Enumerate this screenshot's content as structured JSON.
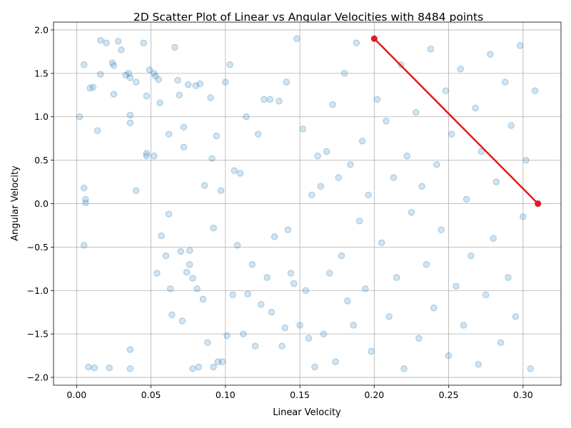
{
  "chart_data": {
    "type": "scatter",
    "title": "2D Scatter Plot of Linear vs Angular Velocities with 8484 points",
    "xlabel": "Linear Velocity",
    "ylabel": "Angular Velocity",
    "xlim": [
      -0.0155,
      0.3255
    ],
    "ylim": [
      -2.09,
      2.09
    ],
    "xticks": [
      0.0,
      0.05,
      0.1,
      0.15,
      0.2,
      0.25,
      0.3
    ],
    "xtick_labels": [
      "0.00",
      "0.05",
      "0.10",
      "0.15",
      "0.20",
      "0.25",
      "0.30"
    ],
    "yticks": [
      -2.0,
      -1.5,
      -1.0,
      -0.5,
      0.0,
      0.5,
      1.0,
      1.5,
      2.0
    ],
    "ytick_labels": [
      "−2.0",
      "−1.5",
      "−1.0",
      "−0.5",
      "0.0",
      "0.5",
      "1.0",
      "1.5",
      "2.0"
    ],
    "grid": true,
    "n_points": 8484,
    "series": [
      {
        "kind": "scatter",
        "color": "#1f77b4",
        "alpha": 0.2,
        "points": [
          [
            0.002,
            1.0
          ],
          [
            0.005,
            1.6
          ],
          [
            0.005,
            0.18
          ],
          [
            0.006,
            0.05
          ],
          [
            0.006,
            0.01
          ],
          [
            0.005,
            -0.48
          ],
          [
            0.008,
            -1.88
          ],
          [
            0.012,
            -1.89
          ],
          [
            0.009,
            1.33
          ],
          [
            0.011,
            1.34
          ],
          [
            0.014,
            0.84
          ],
          [
            0.016,
            1.49
          ],
          [
            0.016,
            1.88
          ],
          [
            0.02,
            1.85
          ],
          [
            0.022,
            -1.89
          ],
          [
            0.024,
            1.62
          ],
          [
            0.025,
            1.59
          ],
          [
            0.025,
            1.26
          ],
          [
            0.028,
            1.87
          ],
          [
            0.03,
            1.77
          ],
          [
            0.033,
            1.48
          ],
          [
            0.035,
            1.5
          ],
          [
            0.036,
            1.45
          ],
          [
            0.036,
            1.02
          ],
          [
            0.036,
            0.93
          ],
          [
            0.036,
            -1.68
          ],
          [
            0.036,
            -1.9
          ],
          [
            0.04,
            1.4
          ],
          [
            0.04,
            0.15
          ],
          [
            0.045,
            1.85
          ],
          [
            0.047,
            1.24
          ],
          [
            0.047,
            0.58
          ],
          [
            0.047,
            0.55
          ],
          [
            0.049,
            1.54
          ],
          [
            0.052,
            1.5
          ],
          [
            0.052,
            0.55
          ],
          [
            0.053,
            1.47
          ],
          [
            0.054,
            -0.8
          ],
          [
            0.055,
            1.43
          ],
          [
            0.056,
            1.16
          ],
          [
            0.057,
            -0.37
          ],
          [
            0.06,
            -0.6
          ],
          [
            0.062,
            0.8
          ],
          [
            0.062,
            -0.12
          ],
          [
            0.063,
            -0.98
          ],
          [
            0.064,
            -1.28
          ],
          [
            0.066,
            1.8
          ],
          [
            0.068,
            1.42
          ],
          [
            0.069,
            1.25
          ],
          [
            0.07,
            -0.55
          ],
          [
            0.071,
            -1.35
          ],
          [
            0.072,
            0.88
          ],
          [
            0.072,
            0.65
          ],
          [
            0.074,
            -0.79
          ],
          [
            0.075,
            1.37
          ],
          [
            0.076,
            -0.54
          ],
          [
            0.076,
            -0.7
          ],
          [
            0.078,
            -0.86
          ],
          [
            0.078,
            -1.9
          ],
          [
            0.08,
            1.36
          ],
          [
            0.081,
            -0.98
          ],
          [
            0.082,
            -1.88
          ],
          [
            0.083,
            1.38
          ],
          [
            0.085,
            -1.1
          ],
          [
            0.086,
            0.21
          ],
          [
            0.088,
            -1.6
          ],
          [
            0.09,
            1.22
          ],
          [
            0.091,
            0.52
          ],
          [
            0.092,
            -0.28
          ],
          [
            0.092,
            -1.88
          ],
          [
            0.094,
            0.78
          ],
          [
            0.095,
            -1.82
          ],
          [
            0.097,
            0.15
          ],
          [
            0.098,
            -1.82
          ],
          [
            0.1,
            1.4
          ],
          [
            0.101,
            -1.52
          ],
          [
            0.103,
            1.6
          ],
          [
            0.105,
            -1.05
          ],
          [
            0.106,
            0.38
          ],
          [
            0.108,
            -0.48
          ],
          [
            0.11,
            0.35
          ],
          [
            0.112,
            -1.5
          ],
          [
            0.114,
            1.0
          ],
          [
            0.115,
            -1.04
          ],
          [
            0.118,
            -0.7
          ],
          [
            0.12,
            -1.64
          ],
          [
            0.122,
            0.8
          ],
          [
            0.124,
            -1.16
          ],
          [
            0.126,
            1.2
          ],
          [
            0.128,
            -0.85
          ],
          [
            0.13,
            1.2
          ],
          [
            0.131,
            -1.25
          ],
          [
            0.133,
            -0.38
          ],
          [
            0.136,
            1.18
          ],
          [
            0.138,
            -1.64
          ],
          [
            0.14,
            -1.43
          ],
          [
            0.141,
            1.4
          ],
          [
            0.142,
            -0.3
          ],
          [
            0.144,
            -0.8
          ],
          [
            0.146,
            -0.92
          ],
          [
            0.148,
            1.9
          ],
          [
            0.15,
            -1.4
          ],
          [
            0.152,
            0.86
          ],
          [
            0.154,
            -1.0
          ],
          [
            0.156,
            -1.55
          ],
          [
            0.158,
            0.1
          ],
          [
            0.16,
            -1.88
          ],
          [
            0.162,
            0.55
          ],
          [
            0.164,
            0.2
          ],
          [
            0.166,
            -1.5
          ],
          [
            0.168,
            0.6
          ],
          [
            0.17,
            -0.8
          ],
          [
            0.172,
            1.14
          ],
          [
            0.174,
            -1.82
          ],
          [
            0.176,
            0.3
          ],
          [
            0.178,
            -0.6
          ],
          [
            0.18,
            1.5
          ],
          [
            0.182,
            -1.12
          ],
          [
            0.184,
            0.45
          ],
          [
            0.186,
            -1.4
          ],
          [
            0.188,
            1.85
          ],
          [
            0.19,
            -0.2
          ],
          [
            0.192,
            0.72
          ],
          [
            0.194,
            -0.98
          ],
          [
            0.196,
            0.1
          ],
          [
            0.198,
            -1.7
          ],
          [
            0.202,
            1.2
          ],
          [
            0.205,
            -0.45
          ],
          [
            0.208,
            0.95
          ],
          [
            0.21,
            -1.3
          ],
          [
            0.213,
            0.3
          ],
          [
            0.215,
            -0.85
          ],
          [
            0.218,
            1.6
          ],
          [
            0.22,
            -1.9
          ],
          [
            0.222,
            0.55
          ],
          [
            0.225,
            -0.1
          ],
          [
            0.228,
            1.05
          ],
          [
            0.23,
            -1.55
          ],
          [
            0.232,
            0.2
          ],
          [
            0.235,
            -0.7
          ],
          [
            0.238,
            1.78
          ],
          [
            0.24,
            -1.2
          ],
          [
            0.242,
            0.45
          ],
          [
            0.245,
            -0.3
          ],
          [
            0.248,
            1.3
          ],
          [
            0.25,
            -1.75
          ],
          [
            0.252,
            0.8
          ],
          [
            0.255,
            -0.95
          ],
          [
            0.258,
            1.55
          ],
          [
            0.26,
            -1.4
          ],
          [
            0.262,
            0.05
          ],
          [
            0.265,
            -0.6
          ],
          [
            0.268,
            1.1
          ],
          [
            0.27,
            -1.85
          ],
          [
            0.272,
            0.6
          ],
          [
            0.275,
            -1.05
          ],
          [
            0.278,
            1.72
          ],
          [
            0.28,
            -0.4
          ],
          [
            0.282,
            0.25
          ],
          [
            0.285,
            -1.6
          ],
          [
            0.288,
            1.4
          ],
          [
            0.29,
            -0.85
          ],
          [
            0.292,
            0.9
          ],
          [
            0.295,
            -1.3
          ],
          [
            0.298,
            1.82
          ],
          [
            0.3,
            -0.15
          ],
          [
            0.302,
            0.5
          ],
          [
            0.305,
            -1.9
          ],
          [
            0.308,
            1.3
          ],
          [
            0.31,
            0.0
          ]
        ]
      },
      {
        "kind": "line",
        "color": "#e31a1c",
        "x": [
          0.2,
          0.31
        ],
        "y": [
          1.9,
          0.0
        ]
      }
    ]
  }
}
